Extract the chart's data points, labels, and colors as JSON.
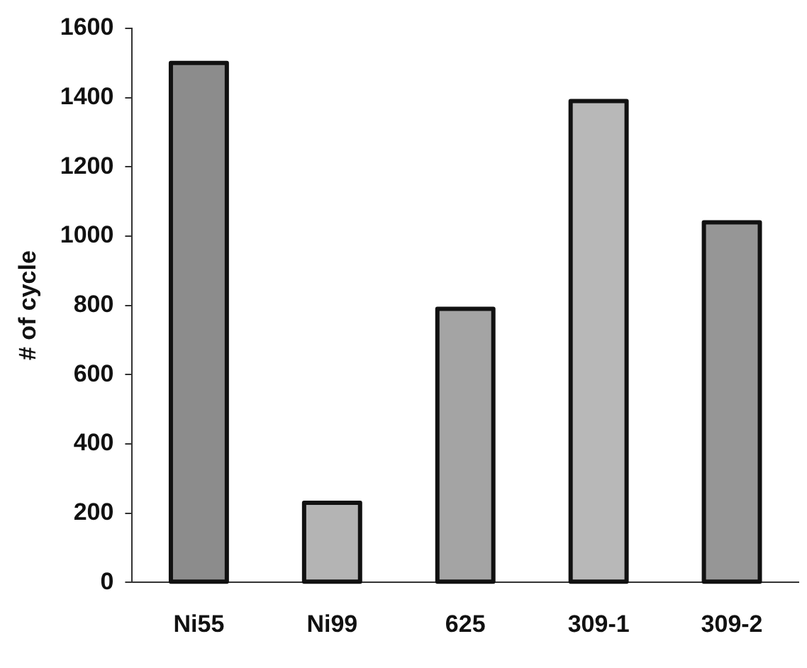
{
  "chart_data": {
    "type": "bar",
    "ylabel": "# of cycle",
    "categories": [
      "Ni55",
      "Ni99",
      "625",
      "309-1",
      "309-2"
    ],
    "values": [
      1500,
      230,
      790,
      1390,
      1040
    ],
    "colors": [
      "#8c8c8c",
      "#b4b4b4",
      "#a4a4a4",
      "#b8b8b8",
      "#969696"
    ],
    "ylim": [
      0,
      1600
    ],
    "yticks": [
      0,
      200,
      400,
      600,
      800,
      1000,
      1200,
      1400,
      1600
    ],
    "grid": false,
    "legend": false
  }
}
